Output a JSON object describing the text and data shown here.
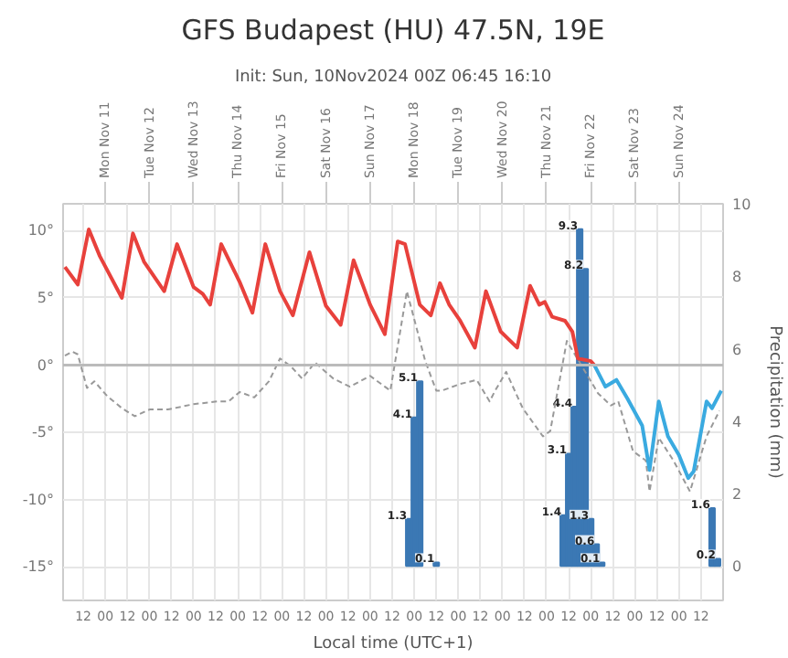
{
  "chart_data": {
    "type": "line",
    "title": "GFS Budapest (HU) 47.5N, 19E",
    "subtitle": "Init: Sun, 10Nov2024 00Z 06:45 16:10",
    "xlabel": "Local time (UTC+1)",
    "y2label": "Precipitation (mm)",
    "xlim": [
      "2024-11-10T01:00",
      "2024-11-25T00:00"
    ],
    "x2lim": [
      "2024-11-10T01:00",
      "2024-11-25T00:00"
    ],
    "xticks": [
      {
        "value": "2024-11-10T12:00",
        "label": "12"
      },
      {
        "value": "2024-11-11T00:00",
        "label": "00"
      },
      {
        "value": "2024-11-11T12:00",
        "label": "12"
      },
      {
        "value": "2024-11-12T00:00",
        "label": "00"
      },
      {
        "value": "2024-11-12T12:00",
        "label": "12"
      },
      {
        "value": "2024-11-13T00:00",
        "label": "00"
      },
      {
        "value": "2024-11-13T12:00",
        "label": "12"
      },
      {
        "value": "2024-11-14T00:00",
        "label": "00"
      },
      {
        "value": "2024-11-14T12:00",
        "label": "12"
      },
      {
        "value": "2024-11-15T00:00",
        "label": "00"
      },
      {
        "value": "2024-11-15T12:00",
        "label": "12"
      },
      {
        "value": "2024-11-16T00:00",
        "label": "00"
      },
      {
        "value": "2024-11-16T12:00",
        "label": "12"
      },
      {
        "value": "2024-11-17T00:00",
        "label": "00"
      },
      {
        "value": "2024-11-17T12:00",
        "label": "12"
      },
      {
        "value": "2024-11-18T00:00",
        "label": "00"
      },
      {
        "value": "2024-11-18T12:00",
        "label": "12"
      },
      {
        "value": "2024-11-19T00:00",
        "label": "00"
      },
      {
        "value": "2024-11-19T12:00",
        "label": "12"
      },
      {
        "value": "2024-11-20T00:00",
        "label": "00"
      },
      {
        "value": "2024-11-20T12:00",
        "label": "12"
      },
      {
        "value": "2024-11-21T00:00",
        "label": "00"
      },
      {
        "value": "2024-11-21T12:00",
        "label": "12"
      },
      {
        "value": "2024-11-22T00:00",
        "label": "00"
      },
      {
        "value": "2024-11-22T12:00",
        "label": "12"
      },
      {
        "value": "2024-11-23T00:00",
        "label": "00"
      },
      {
        "value": "2024-11-23T12:00",
        "label": "12"
      },
      {
        "value": "2024-11-24T00:00",
        "label": "00"
      },
      {
        "value": "2024-11-24T12:00",
        "label": "12"
      }
    ],
    "x2ticks": [
      {
        "value": "2024-11-11",
        "label": "Mon Nov 11"
      },
      {
        "value": "2024-11-12",
        "label": "Tue Nov 12"
      },
      {
        "value": "2024-11-13",
        "label": "Wed Nov 13"
      },
      {
        "value": "2024-11-14",
        "label": "Thu Nov 14"
      },
      {
        "value": "2024-11-15",
        "label": "Fri Nov 15"
      },
      {
        "value": "2024-11-16",
        "label": "Sat Nov 16"
      },
      {
        "value": "2024-11-17",
        "label": "Sun Nov 17"
      },
      {
        "value": "2024-11-18",
        "label": "Mon Nov 18"
      },
      {
        "value": "2024-11-19",
        "label": "Tue Nov 19"
      },
      {
        "value": "2024-11-20",
        "label": "Wed Nov 20"
      },
      {
        "value": "2024-11-21",
        "label": "Thu Nov 21"
      },
      {
        "value": "2024-11-22",
        "label": "Fri Nov 22"
      },
      {
        "value": "2024-11-23",
        "label": "Sat Nov 23"
      },
      {
        "value": "2024-11-24",
        "label": "Sun Nov 24"
      }
    ],
    "ylim": [
      -17.5,
      12
    ],
    "yticks": [
      {
        "value": 10,
        "label": "10°"
      },
      {
        "value": 5,
        "label": "5°"
      },
      {
        "value": 0,
        "label": "0°"
      },
      {
        "value": -5,
        "label": "-5°"
      },
      {
        "value": -10,
        "label": "-10°"
      },
      {
        "value": -15,
        "label": "-15°"
      }
    ],
    "y2lim": [
      -0.95,
      10
    ],
    "y2ticks": [
      0,
      2,
      4,
      6,
      8,
      10
    ],
    "grid": true,
    "ref_lines": [
      {
        "axis": "y",
        "value": 0,
        "color": "#bbbbbb"
      }
    ],
    "series": [
      {
        "type": "bar",
        "axis": "y2",
        "color": "#3b78b4",
        "data_labels": true,
        "x": [
          "2024-11-17T21:00",
          "2024-11-18T00:00",
          "2024-11-18T03:00",
          "2024-11-18T12:00",
          "2024-11-21T09:00",
          "2024-11-21T12:00",
          "2024-11-21T15:00",
          "2024-11-21T18:00",
          "2024-11-21T21:00",
          "2024-11-22T00:00",
          "2024-11-22T03:00",
          "2024-11-22T06:00",
          "2024-11-24T18:00",
          "2024-11-24T21:00"
        ],
        "values": [
          1.3,
          4.1,
          5.1,
          0.1,
          1.4,
          3.1,
          4.4,
          9.3,
          8.2,
          1.3,
          0.6,
          0.1,
          1.6,
          0.2
        ]
      },
      {
        "color": "#999999",
        "line_style": "dashed",
        "x": [
          "2024-11-10T02:00",
          "2024-11-10T06:00",
          "2024-11-10T09:00",
          "2024-11-10T14:00",
          "2024-11-10T18:00",
          "2024-11-11T01:00",
          "2024-11-11T09:00",
          "2024-11-11T16:00",
          "2024-11-12T00:00",
          "2024-11-12T10:00",
          "2024-11-13T00:00",
          "2024-11-13T13:00",
          "2024-11-13T19:00",
          "2024-11-14T01:00",
          "2024-11-14T09:00",
          "2024-11-14T17:00",
          "2024-11-14T23:00",
          "2024-11-15T05:00",
          "2024-11-15T11:00",
          "2024-11-15T18:00",
          "2024-11-16T04:00",
          "2024-11-16T13:00",
          "2024-11-17T00:00",
          "2024-11-17T11:00",
          "2024-11-17T20:00",
          "2024-11-18T06:00",
          "2024-11-18T12:00",
          "2024-11-18T15:00",
          "2024-11-19T01:00",
          "2024-11-19T10:00",
          "2024-11-19T17:00",
          "2024-11-19T20:00",
          "2024-11-20T02:00",
          "2024-11-20T11:00",
          "2024-11-20T22:00",
          "2024-11-21T02:00",
          "2024-11-21T11:00",
          "2024-11-22T04:00",
          "2024-11-22T11:00",
          "2024-11-22T15:00",
          "2024-11-22T23:00",
          "2024-11-23T06:00",
          "2024-11-23T08:00",
          "2024-11-23T13:00",
          "2024-11-23T21:00",
          "2024-11-24T06:00",
          "2024-11-24T15:00",
          "2024-11-24T22:00"
        ],
        "values": [
          0.7,
          1.0,
          0.8,
          -1.7,
          -1.2,
          -2.3,
          -3.2,
          -3.8,
          -3.3,
          -3.3,
          -2.9,
          -2.7,
          -2.7,
          -2.0,
          -2.4,
          -1.2,
          0.5,
          -0.1,
          -1.0,
          0.2,
          -1.0,
          -1.6,
          -0.8,
          -1.9,
          5.5,
          0.3,
          -1.9,
          -1.9,
          -1.4,
          -1.1,
          -2.7,
          -1.9,
          -0.5,
          -3.2,
          -5.3,
          -4.9,
          1.8,
          -2.1,
          -3.0,
          -2.7,
          -6.4,
          -7.1,
          -9.4,
          -5.4,
          -7.1,
          -9.4,
          -5.3,
          -3.4
        ]
      },
      {
        "color": "#e8413c",
        "x": [
          "2024-11-10T02:00",
          "2024-11-10T09:00",
          "2024-11-10T15:00",
          "2024-11-10T21:00",
          "2024-11-11T09:00",
          "2024-11-11T15:00",
          "2024-11-11T21:00",
          "2024-11-12T08:00",
          "2024-11-12T15:00",
          "2024-11-13T00:00",
          "2024-11-13T05:00",
          "2024-11-13T09:00",
          "2024-11-13T15:00",
          "2024-11-14T01:00",
          "2024-11-14T08:00",
          "2024-11-14T15:00",
          "2024-11-14T23:00",
          "2024-11-15T06:00",
          "2024-11-15T15:00",
          "2024-11-16T00:00",
          "2024-11-16T08:00",
          "2024-11-16T15:00",
          "2024-11-17T00:00",
          "2024-11-17T08:00",
          "2024-11-17T15:00",
          "2024-11-17T19:00",
          "2024-11-18T03:00",
          "2024-11-18T09:00",
          "2024-11-18T14:00",
          "2024-11-18T19:00",
          "2024-11-19T01:00",
          "2024-11-19T09:00",
          "2024-11-19T15:00",
          "2024-11-19T23:00",
          "2024-11-20T08:00",
          "2024-11-20T15:00",
          "2024-11-20T20:00",
          "2024-11-20T23:00",
          "2024-11-21T03:00",
          "2024-11-21T10:00",
          "2024-11-21T14:00",
          "2024-11-21T17:00",
          "2024-11-22T00:00",
          "2024-11-22T02:00"
        ],
        "values": [
          7.3,
          6.0,
          10.1,
          8.1,
          5.0,
          9.8,
          7.7,
          5.5,
          9.0,
          5.8,
          5.3,
          4.5,
          9.0,
          6.2,
          3.9,
          9.0,
          5.5,
          3.7,
          8.4,
          4.4,
          3.0,
          7.8,
          4.5,
          2.3,
          9.2,
          9.0,
          4.5,
          3.7,
          6.1,
          4.5,
          3.3,
          1.3,
          5.5,
          2.5,
          1.3,
          5.9,
          4.5,
          4.7,
          3.6,
          3.3,
          2.5,
          0.5,
          0.3,
          0
        ]
      },
      {
        "color": "#3aaae0",
        "x": [
          "2024-11-22T02:00",
          "2024-11-22T08:00",
          "2024-11-22T14:00",
          "2024-11-22T20:00",
          "2024-11-23T04:00",
          "2024-11-23T08:00",
          "2024-11-23T13:00",
          "2024-11-23T18:00",
          "2024-11-24T00:00",
          "2024-11-24T05:00",
          "2024-11-24T08:00",
          "2024-11-24T15:00",
          "2024-11-24T18:00",
          "2024-11-24T23:00"
        ],
        "values": [
          0,
          -1.6,
          -1.1,
          -2.5,
          -4.5,
          -7.8,
          -2.7,
          -5.3,
          -6.7,
          -8.4,
          -7.9,
          -2.7,
          -3.2,
          -1.9
        ]
      }
    ]
  }
}
